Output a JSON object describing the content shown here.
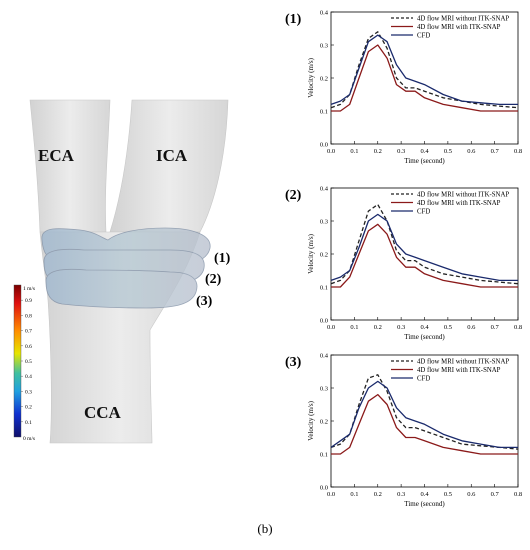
{
  "figure": {
    "caption": "(b)",
    "vessel_labels": {
      "eca": "ECA",
      "ica": "ICA",
      "cca": "CCA"
    },
    "plane_labels": [
      "(1)",
      "(2)",
      "(3)"
    ],
    "colorbar": {
      "max_label": "1 m/s",
      "min_label": "0 m/s",
      "ticks": [
        "0.9",
        "0.8",
        "0.7",
        "0.6",
        "0.5",
        "0.4",
        "0.3",
        "0.2",
        "0.1"
      ]
    }
  },
  "colors": {
    "without_itk": "#222222",
    "with_itk": "#8b1a1a",
    "cfd": "#1a2a6c",
    "vessel": "#e3e3e3"
  },
  "chart_data": [
    {
      "type": "line",
      "panel_label": "(1)",
      "xlabel": "Time (second)",
      "ylabel": "Velocity (m/s)",
      "xlim": [
        0,
        0.8
      ],
      "ylim": [
        0,
        0.4
      ],
      "xticks": [
        "0.0",
        "0.1",
        "0.2",
        "0.3",
        "0.4",
        "0.5",
        "0.6",
        "0.7",
        "0.8"
      ],
      "yticks": [
        "0.0",
        "0.1",
        "0.2",
        "0.3",
        "0.4"
      ],
      "legend_position": "top-right",
      "x": [
        0,
        0.04,
        0.08,
        0.12,
        0.16,
        0.2,
        0.24,
        0.28,
        0.32,
        0.36,
        0.4,
        0.48,
        0.56,
        0.64,
        0.72,
        0.8
      ],
      "series": [
        {
          "name": "4D flow MRI without ITK-SNAP",
          "style": "dashed",
          "values": [
            0.11,
            0.12,
            0.15,
            0.24,
            0.32,
            0.34,
            0.29,
            0.2,
            0.17,
            0.17,
            0.16,
            0.14,
            0.13,
            0.12,
            0.115,
            0.11
          ]
        },
        {
          "name": "4D flow MRI with ITK-SNAP",
          "style": "solid",
          "values": [
            0.1,
            0.1,
            0.12,
            0.2,
            0.28,
            0.3,
            0.26,
            0.18,
            0.16,
            0.16,
            0.14,
            0.12,
            0.11,
            0.1,
            0.1,
            0.1
          ]
        },
        {
          "name": "CFD",
          "style": "solid",
          "values": [
            0.12,
            0.13,
            0.15,
            0.23,
            0.31,
            0.33,
            0.31,
            0.24,
            0.2,
            0.19,
            0.18,
            0.15,
            0.13,
            0.125,
            0.12,
            0.12
          ]
        }
      ]
    },
    {
      "type": "line",
      "panel_label": "(2)",
      "xlabel": "Time (second)",
      "ylabel": "Velocity (m/s)",
      "xlim": [
        0,
        0.8
      ],
      "ylim": [
        0,
        0.4
      ],
      "xticks": [
        "0.0",
        "0.1",
        "0.2",
        "0.3",
        "0.4",
        "0.5",
        "0.6",
        "0.7",
        "0.8"
      ],
      "yticks": [
        "0.0",
        "0.1",
        "0.2",
        "0.3",
        "0.4"
      ],
      "legend_position": "top-right",
      "x": [
        0,
        0.04,
        0.08,
        0.12,
        0.16,
        0.2,
        0.24,
        0.28,
        0.32,
        0.36,
        0.4,
        0.48,
        0.56,
        0.64,
        0.72,
        0.8
      ],
      "series": [
        {
          "name": "4D flow MRI without ITK-SNAP",
          "style": "dashed",
          "values": [
            0.11,
            0.12,
            0.15,
            0.24,
            0.33,
            0.35,
            0.3,
            0.21,
            0.18,
            0.18,
            0.16,
            0.14,
            0.13,
            0.12,
            0.115,
            0.11
          ]
        },
        {
          "name": "4D flow MRI with ITK-SNAP",
          "style": "solid",
          "values": [
            0.1,
            0.1,
            0.13,
            0.2,
            0.27,
            0.29,
            0.26,
            0.19,
            0.16,
            0.16,
            0.14,
            0.12,
            0.11,
            0.1,
            0.1,
            0.1
          ]
        },
        {
          "name": "CFD",
          "style": "solid",
          "values": [
            0.12,
            0.13,
            0.15,
            0.22,
            0.3,
            0.32,
            0.3,
            0.23,
            0.2,
            0.19,
            0.18,
            0.16,
            0.14,
            0.13,
            0.12,
            0.12
          ]
        }
      ]
    },
    {
      "type": "line",
      "panel_label": "(3)",
      "xlabel": "Time (second)",
      "ylabel": "Velocity (m/s)",
      "xlim": [
        0,
        0.8
      ],
      "ylim": [
        0,
        0.4
      ],
      "xticks": [
        "0.0",
        "0.1",
        "0.2",
        "0.3",
        "0.4",
        "0.5",
        "0.6",
        "0.7",
        "0.8"
      ],
      "yticks": [
        "0.0",
        "0.1",
        "0.2",
        "0.3",
        "0.4"
      ],
      "legend_position": "top-right",
      "x": [
        0,
        0.04,
        0.08,
        0.12,
        0.16,
        0.2,
        0.24,
        0.28,
        0.32,
        0.36,
        0.4,
        0.48,
        0.56,
        0.64,
        0.72,
        0.8
      ],
      "series": [
        {
          "name": "4D flow MRI without ITK-SNAP",
          "style": "dashed",
          "values": [
            0.12,
            0.13,
            0.16,
            0.25,
            0.33,
            0.34,
            0.29,
            0.21,
            0.18,
            0.18,
            0.17,
            0.15,
            0.13,
            0.125,
            0.12,
            0.115
          ]
        },
        {
          "name": "4D flow MRI with ITK-SNAP",
          "style": "solid",
          "values": [
            0.1,
            0.1,
            0.12,
            0.19,
            0.26,
            0.28,
            0.25,
            0.18,
            0.15,
            0.15,
            0.14,
            0.12,
            0.11,
            0.1,
            0.1,
            0.1
          ]
        },
        {
          "name": "CFD",
          "style": "solid",
          "values": [
            0.12,
            0.14,
            0.16,
            0.24,
            0.3,
            0.32,
            0.3,
            0.24,
            0.21,
            0.2,
            0.19,
            0.16,
            0.14,
            0.13,
            0.12,
            0.12
          ]
        }
      ]
    }
  ]
}
